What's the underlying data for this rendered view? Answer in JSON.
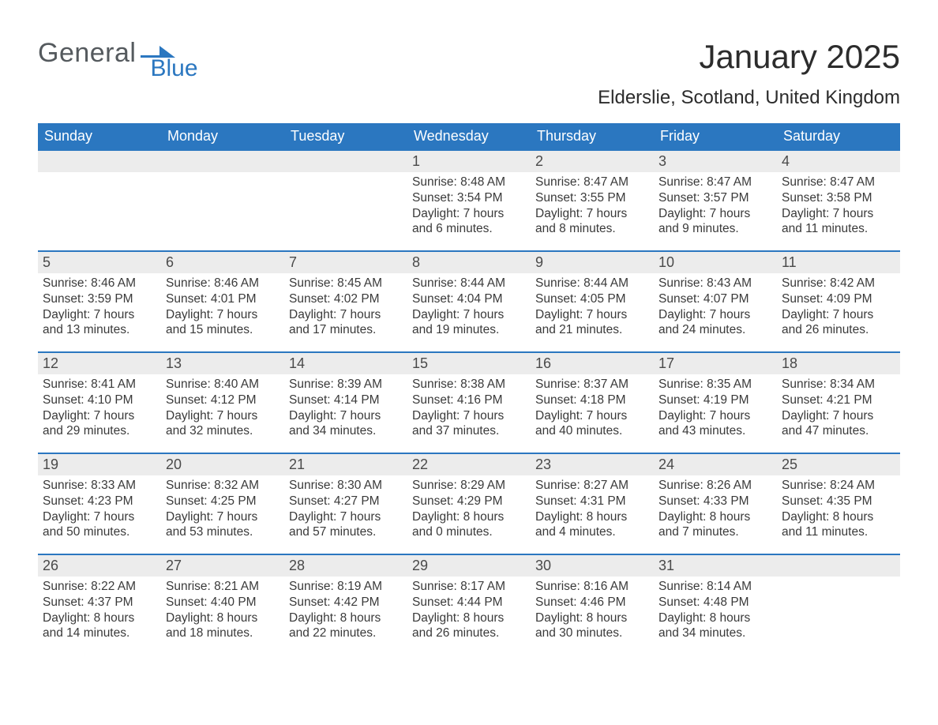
{
  "logo": {
    "word1": "General",
    "word2": "Blue",
    "flag_color": "#2b77c0"
  },
  "title": "January 2025",
  "location": "Elderslie, Scotland, United Kingdom",
  "colors": {
    "header_bg": "#2b77c0",
    "header_fg": "#ffffff",
    "daynum_bg": "#ececec",
    "text": "#333333",
    "cell_border": "#2b77c0",
    "page_bg": "#ffffff"
  },
  "fonts": {
    "base_family": "Arial",
    "title_size_pt": 32,
    "location_size_pt": 18,
    "dow_size_pt": 14,
    "body_size_pt": 12
  },
  "dow": [
    "Sunday",
    "Monday",
    "Tuesday",
    "Wednesday",
    "Thursday",
    "Friday",
    "Saturday"
  ],
  "leading_blanks": 3,
  "days": [
    {
      "n": "1",
      "sunrise": "8:48 AM",
      "sunset": "3:54 PM",
      "dl": "7 hours and 6 minutes."
    },
    {
      "n": "2",
      "sunrise": "8:47 AM",
      "sunset": "3:55 PM",
      "dl": "7 hours and 8 minutes."
    },
    {
      "n": "3",
      "sunrise": "8:47 AM",
      "sunset": "3:57 PM",
      "dl": "7 hours and 9 minutes."
    },
    {
      "n": "4",
      "sunrise": "8:47 AM",
      "sunset": "3:58 PM",
      "dl": "7 hours and 11 minutes."
    },
    {
      "n": "5",
      "sunrise": "8:46 AM",
      "sunset": "3:59 PM",
      "dl": "7 hours and 13 minutes."
    },
    {
      "n": "6",
      "sunrise": "8:46 AM",
      "sunset": "4:01 PM",
      "dl": "7 hours and 15 minutes."
    },
    {
      "n": "7",
      "sunrise": "8:45 AM",
      "sunset": "4:02 PM",
      "dl": "7 hours and 17 minutes."
    },
    {
      "n": "8",
      "sunrise": "8:44 AM",
      "sunset": "4:04 PM",
      "dl": "7 hours and 19 minutes."
    },
    {
      "n": "9",
      "sunrise": "8:44 AM",
      "sunset": "4:05 PM",
      "dl": "7 hours and 21 minutes."
    },
    {
      "n": "10",
      "sunrise": "8:43 AM",
      "sunset": "4:07 PM",
      "dl": "7 hours and 24 minutes."
    },
    {
      "n": "11",
      "sunrise": "8:42 AM",
      "sunset": "4:09 PM",
      "dl": "7 hours and 26 minutes."
    },
    {
      "n": "12",
      "sunrise": "8:41 AM",
      "sunset": "4:10 PM",
      "dl": "7 hours and 29 minutes."
    },
    {
      "n": "13",
      "sunrise": "8:40 AM",
      "sunset": "4:12 PM",
      "dl": "7 hours and 32 minutes."
    },
    {
      "n": "14",
      "sunrise": "8:39 AM",
      "sunset": "4:14 PM",
      "dl": "7 hours and 34 minutes."
    },
    {
      "n": "15",
      "sunrise": "8:38 AM",
      "sunset": "4:16 PM",
      "dl": "7 hours and 37 minutes."
    },
    {
      "n": "16",
      "sunrise": "8:37 AM",
      "sunset": "4:18 PM",
      "dl": "7 hours and 40 minutes."
    },
    {
      "n": "17",
      "sunrise": "8:35 AM",
      "sunset": "4:19 PM",
      "dl": "7 hours and 43 minutes."
    },
    {
      "n": "18",
      "sunrise": "8:34 AM",
      "sunset": "4:21 PM",
      "dl": "7 hours and 47 minutes."
    },
    {
      "n": "19",
      "sunrise": "8:33 AM",
      "sunset": "4:23 PM",
      "dl": "7 hours and 50 minutes."
    },
    {
      "n": "20",
      "sunrise": "8:32 AM",
      "sunset": "4:25 PM",
      "dl": "7 hours and 53 minutes."
    },
    {
      "n": "21",
      "sunrise": "8:30 AM",
      "sunset": "4:27 PM",
      "dl": "7 hours and 57 minutes."
    },
    {
      "n": "22",
      "sunrise": "8:29 AM",
      "sunset": "4:29 PM",
      "dl": "8 hours and 0 minutes."
    },
    {
      "n": "23",
      "sunrise": "8:27 AM",
      "sunset": "4:31 PM",
      "dl": "8 hours and 4 minutes."
    },
    {
      "n": "24",
      "sunrise": "8:26 AM",
      "sunset": "4:33 PM",
      "dl": "8 hours and 7 minutes."
    },
    {
      "n": "25",
      "sunrise": "8:24 AM",
      "sunset": "4:35 PM",
      "dl": "8 hours and 11 minutes."
    },
    {
      "n": "26",
      "sunrise": "8:22 AM",
      "sunset": "4:37 PM",
      "dl": "8 hours and 14 minutes."
    },
    {
      "n": "27",
      "sunrise": "8:21 AM",
      "sunset": "4:40 PM",
      "dl": "8 hours and 18 minutes."
    },
    {
      "n": "28",
      "sunrise": "8:19 AM",
      "sunset": "4:42 PM",
      "dl": "8 hours and 22 minutes."
    },
    {
      "n": "29",
      "sunrise": "8:17 AM",
      "sunset": "4:44 PM",
      "dl": "8 hours and 26 minutes."
    },
    {
      "n": "30",
      "sunrise": "8:16 AM",
      "sunset": "4:46 PM",
      "dl": "8 hours and 30 minutes."
    },
    {
      "n": "31",
      "sunrise": "8:14 AM",
      "sunset": "4:48 PM",
      "dl": "8 hours and 34 minutes."
    }
  ],
  "labels": {
    "sunrise": "Sunrise:",
    "sunset": "Sunset:",
    "daylight": "Daylight:"
  }
}
